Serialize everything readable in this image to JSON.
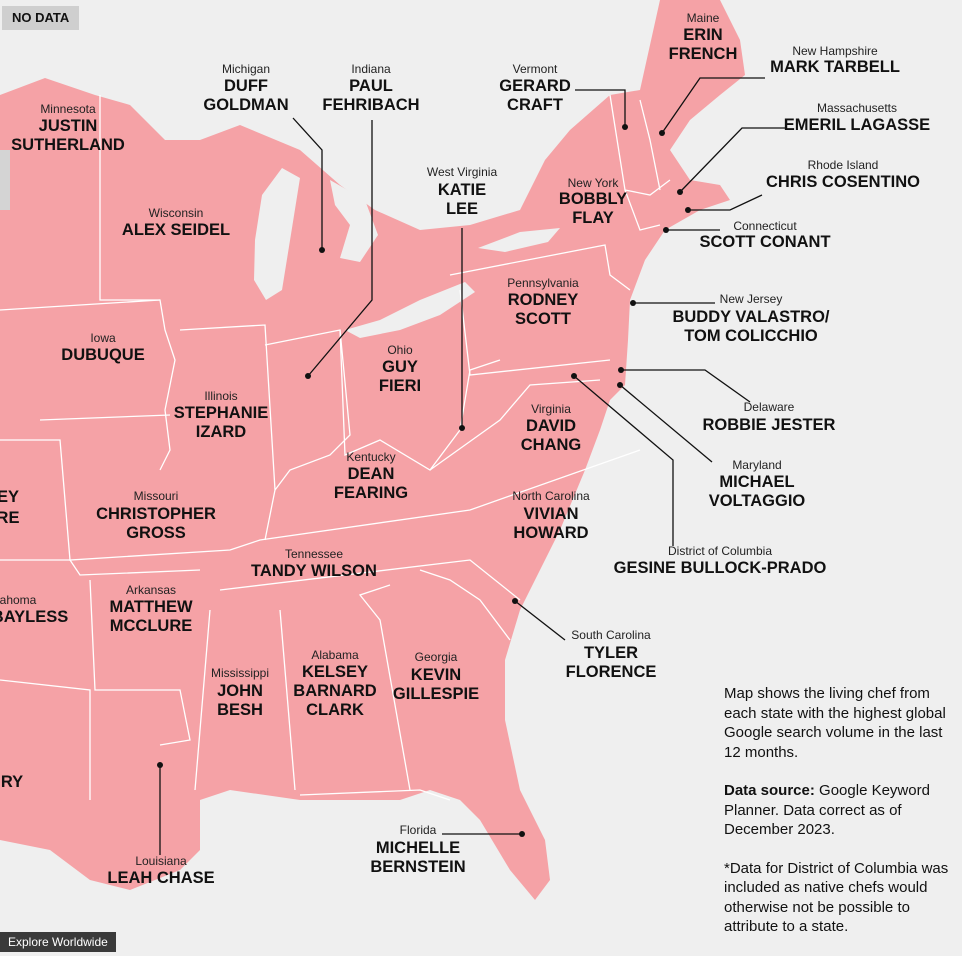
{
  "badge": "NO DATA",
  "states": [
    {
      "state": "Maine",
      "chef": [
        "ERIN",
        "FRENCH"
      ]
    },
    {
      "state": "New Hampshire",
      "chef": [
        "MARK TARBELL"
      ]
    },
    {
      "state": "Massachusetts",
      "chef": [
        "EMERIL LAGASSE"
      ]
    },
    {
      "state": "Rhode Island",
      "chef": [
        "CHRIS COSENTINO"
      ]
    },
    {
      "state": "Connecticut",
      "chef": [
        "SCOTT CONANT"
      ]
    },
    {
      "state": "New Jersey",
      "chef": [
        "BUDDY VALASTRO/",
        "TOM COLICCHIO"
      ]
    },
    {
      "state": "Delaware",
      "chef": [
        "ROBBIE JESTER"
      ]
    },
    {
      "state": "Maryland",
      "chef": [
        "MICHAEL",
        "VOLTAGGIO"
      ]
    },
    {
      "state": "District of Columbia",
      "chef": [
        "GESINE BULLOCK-PRADO"
      ]
    },
    {
      "state": "South Carolina",
      "chef": [
        "TYLER",
        "FLORENCE"
      ]
    },
    {
      "state": "Florida",
      "chef": [
        "MICHELLE",
        "BERNSTEIN"
      ]
    },
    {
      "state": "Louisiana",
      "chef": [
        "LEAH CHASE"
      ]
    },
    {
      "state": "Georgia",
      "chef": [
        "KEVIN",
        "GILLESPIE"
      ]
    },
    {
      "state": "Alabama",
      "chef": [
        "KELSEY",
        "BARNARD",
        "CLARK"
      ]
    },
    {
      "state": "Mississippi",
      "chef": [
        "JOHN",
        "BESH"
      ]
    },
    {
      "state": "Arkansas",
      "chef": [
        "MATTHEW",
        "MCCLURE"
      ]
    },
    {
      "state": "Tennessee",
      "chef": [
        "TANDY WILSON"
      ]
    },
    {
      "state": "North Carolina",
      "chef": [
        "VIVIAN",
        "HOWARD"
      ]
    },
    {
      "state": "Missouri",
      "chef": [
        "CHRISTOPHER",
        "GROSS"
      ]
    },
    {
      "state": "Kentucky",
      "chef": [
        "DEAN",
        "FEARING"
      ]
    },
    {
      "state": "Virginia",
      "chef": [
        "DAVID",
        "CHANG"
      ]
    },
    {
      "state": "Illinois",
      "chef": [
        "STEPHANIE",
        "IZARD"
      ]
    },
    {
      "state": "Ohio",
      "chef": [
        "GUY",
        "FIERI"
      ]
    },
    {
      "state": "Iowa",
      "chef": [
        "DUBUQUE"
      ]
    },
    {
      "state": "Pennsylvania",
      "chef": [
        "RODNEY",
        "SCOTT"
      ]
    },
    {
      "state": "Wisconsin",
      "chef": [
        "ALEX SEIDEL"
      ]
    },
    {
      "state": "New York",
      "chef": [
        "BOBBLY",
        "FLAY"
      ]
    },
    {
      "state": "West Virginia",
      "chef": [
        "KATIE",
        "LEE"
      ]
    },
    {
      "state": "Vermont",
      "chef": [
        "GERARD",
        "CRAFT"
      ]
    },
    {
      "state": "Indiana",
      "chef": [
        "PAUL",
        "FEHRIBACH"
      ]
    },
    {
      "state": "Michigan",
      "chef": [
        "DUFF",
        "GOLDMAN"
      ]
    },
    {
      "state": "Minnesota",
      "chef": [
        "JUSTIN",
        "SUTHERLAND"
      ]
    }
  ],
  "cut_off_labels": [
    "EY",
    "RE",
    "ahoma",
    "BAYLESS",
    "RY"
  ],
  "note": {
    "text": "Map shows the living chef from each state with the highest global Google search volume in the last 12 months.",
    "source_label": "Data source:",
    "source_text": "Google Keyword Planner. Data correct as of December 2023.",
    "footnote": "*Data for District of Columbia was included as native chefs would otherwise not be possible to attribute to a state."
  },
  "footer": "Explore Worldwide"
}
